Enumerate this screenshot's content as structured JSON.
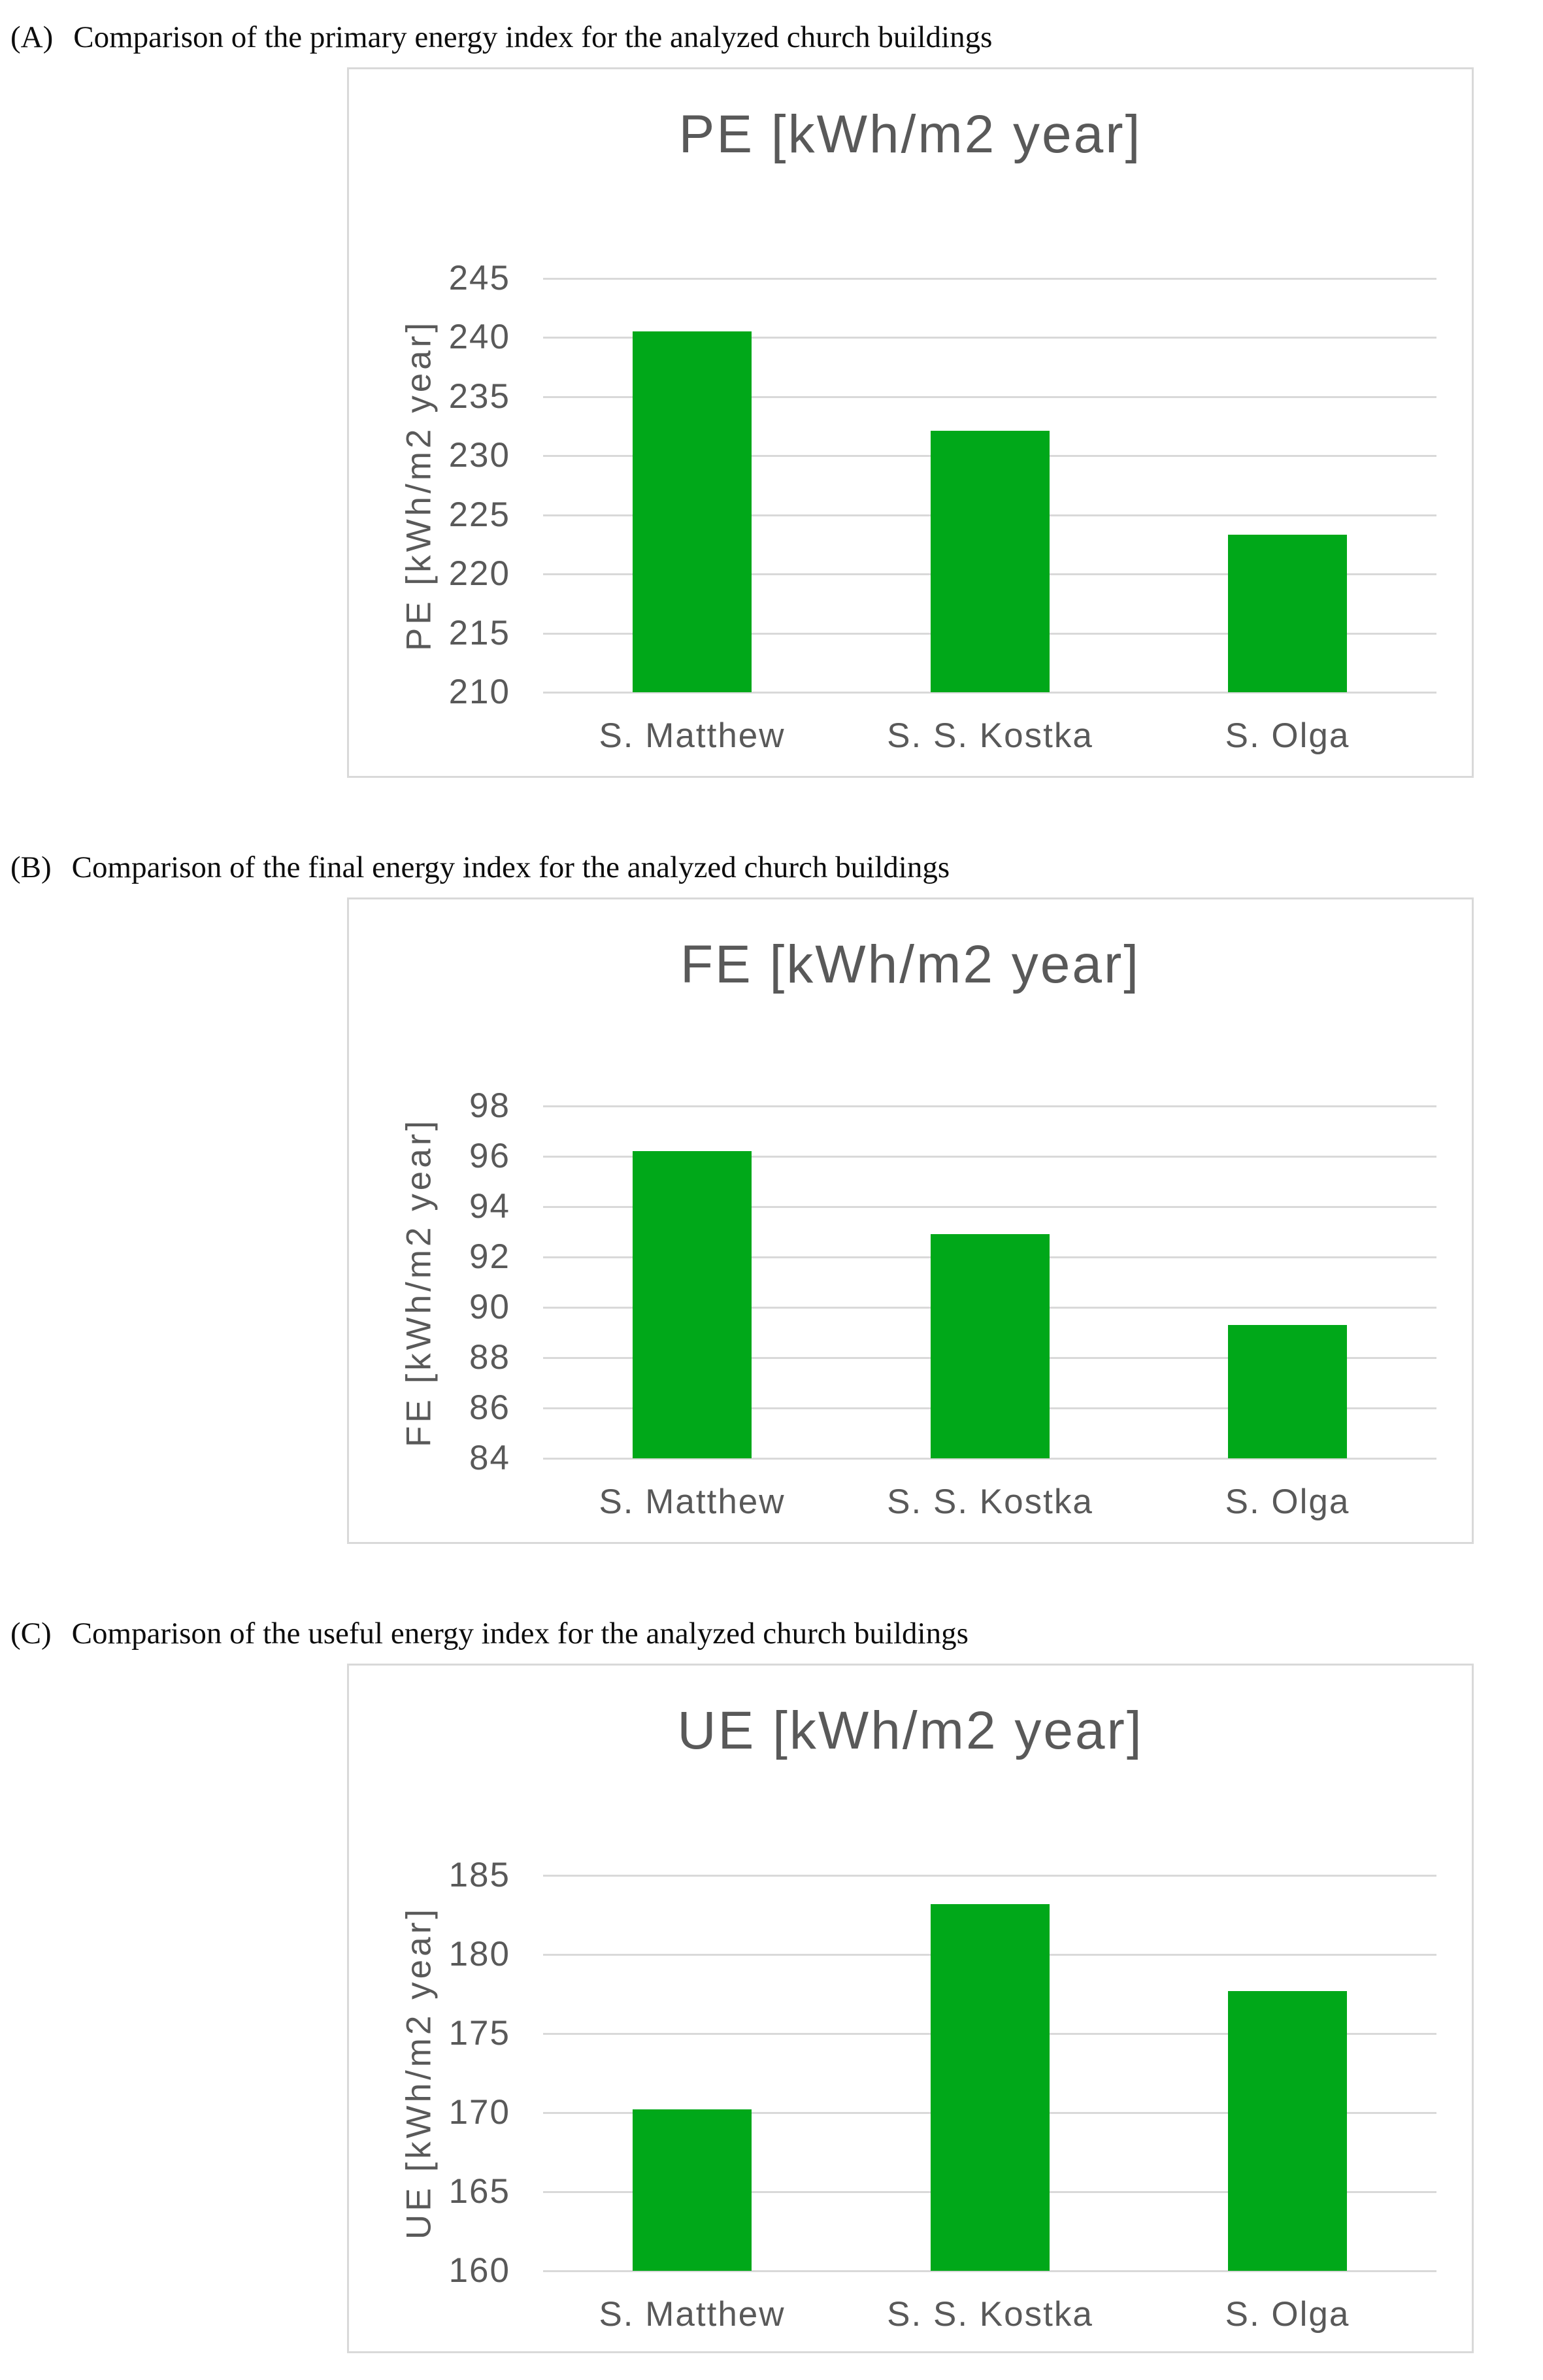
{
  "colors": {
    "bar_green": "#00A819",
    "axis_text_gray": "#595959",
    "gridline_gray": "#D9D9D9",
    "panel_border_gray": "#D9D9D9",
    "caption_black": "#0D0D0D"
  },
  "chart_data": [
    {
      "type": "bar",
      "panel_label": "(A)",
      "caption": "Comparison of the primary energy index for the analyzed church buildings",
      "title": "PE [kWh/m2 year]",
      "ylabel": "PE [kWh/m2 year]",
      "xlabel": "",
      "categories": [
        "S. Matthew",
        "S. S. Kostka",
        "S. Olga"
      ],
      "values": [
        240.5,
        232.1,
        223.3
      ],
      "ylim": [
        210,
        245
      ],
      "y_step": 5,
      "y_ticks": [
        245,
        240,
        235,
        230,
        225,
        220,
        215,
        210
      ],
      "grid": true,
      "legend": "none",
      "bar_color": "#00A819"
    },
    {
      "type": "bar",
      "panel_label": "(B)",
      "caption": "Comparison of the final energy index for the analyzed church buildings",
      "title": "FE [kWh/m2 year]",
      "ylabel": "FE [kWh/m2 year]",
      "xlabel": "",
      "categories": [
        "S. Matthew",
        "S. S. Kostka",
        "S. Olga"
      ],
      "values": [
        96.2,
        92.9,
        89.3
      ],
      "ylim": [
        84,
        98
      ],
      "y_step": 2,
      "y_ticks": [
        98,
        96,
        94,
        92,
        90,
        88,
        86,
        84
      ],
      "grid": true,
      "legend": "none",
      "bar_color": "#00A819"
    },
    {
      "type": "bar",
      "panel_label": "(C)",
      "caption": "Comparison of the useful energy index for the analyzed church buildings",
      "title": "UE [kWh/m2 year]",
      "ylabel": "UE [kWh/m2 year]",
      "xlabel": "",
      "categories": [
        "S. Matthew",
        "S. S. Kostka",
        "S. Olga"
      ],
      "values": [
        170.2,
        183.2,
        177.7
      ],
      "ylim": [
        160,
        185
      ],
      "y_step": 5,
      "y_ticks": [
        185,
        180,
        175,
        170,
        165,
        160
      ],
      "grid": true,
      "legend": "none",
      "bar_color": "#00A819"
    }
  ]
}
